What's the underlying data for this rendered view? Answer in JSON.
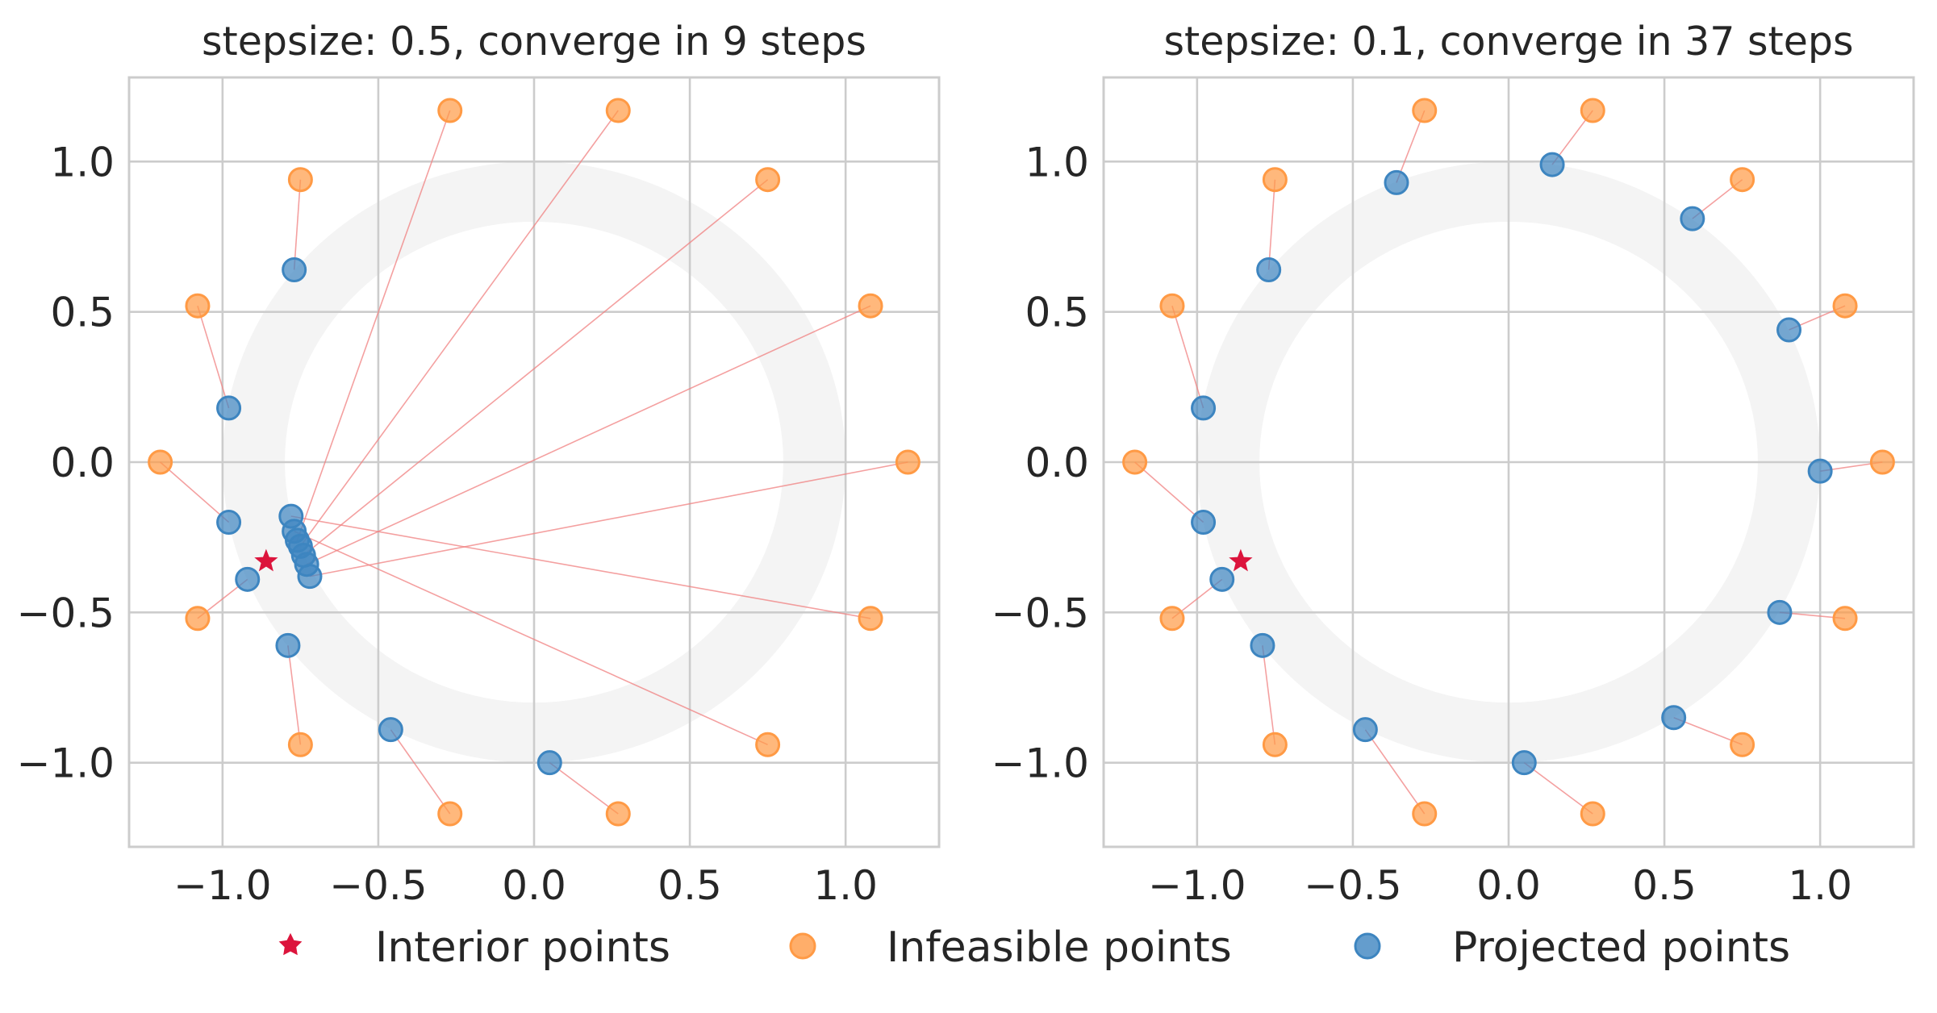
{
  "chart_data": [
    {
      "type": "scatter",
      "title": "stepsize: 0.5, converge in 9 steps",
      "xlim": [
        -1.3,
        1.3
      ],
      "ylim": [
        -1.28,
        1.28
      ],
      "xticks": [
        -1.0,
        -0.5,
        0.0,
        0.5,
        1.0
      ],
      "yticks": [
        -1.0,
        -0.5,
        0.0,
        0.5,
        1.0
      ],
      "xtick_labels": [
        "−1.0",
        "−0.5",
        "0.0",
        "0.5",
        "1.0"
      ],
      "ytick_labels": [
        "−1.0",
        "−0.5",
        "0.0",
        "0.5",
        "1.0"
      ],
      "grid": true,
      "feasible_region": {
        "shape": "annulus",
        "inner_radius": 0.8,
        "outer_radius": 1.0,
        "color": "#f4f4f4"
      },
      "interior_point": [
        -0.86,
        -0.33
      ],
      "pairs": [
        {
          "infeasible": [
            1.2,
            0.0
          ],
          "projected": [
            -0.72,
            -0.38
          ]
        },
        {
          "infeasible": [
            1.08,
            0.52
          ],
          "projected": [
            -0.73,
            -0.34
          ]
        },
        {
          "infeasible": [
            0.75,
            0.94
          ],
          "projected": [
            -0.74,
            -0.31
          ]
        },
        {
          "infeasible": [
            0.27,
            1.17
          ],
          "projected": [
            -0.75,
            -0.28
          ]
        },
        {
          "infeasible": [
            -0.27,
            1.17
          ],
          "projected": [
            -0.76,
            -0.26
          ]
        },
        {
          "infeasible": [
            -0.75,
            0.94
          ],
          "projected": [
            -0.77,
            0.64
          ]
        },
        {
          "infeasible": [
            -1.08,
            0.52
          ],
          "projected": [
            -0.98,
            0.18
          ]
        },
        {
          "infeasible": [
            -1.2,
            0.0
          ],
          "projected": [
            -0.98,
            -0.2
          ]
        },
        {
          "infeasible": [
            -1.08,
            -0.52
          ],
          "projected": [
            -0.92,
            -0.39
          ]
        },
        {
          "infeasible": [
            -0.75,
            -0.94
          ],
          "projected": [
            -0.79,
            -0.61
          ]
        },
        {
          "infeasible": [
            -0.27,
            -1.17
          ],
          "projected": [
            -0.46,
            -0.89
          ]
        },
        {
          "infeasible": [
            0.27,
            -1.17
          ],
          "projected": [
            0.05,
            -1.0
          ]
        },
        {
          "infeasible": [
            0.75,
            -0.94
          ],
          "projected": [
            -0.77,
            -0.23
          ]
        },
        {
          "infeasible": [
            1.08,
            -0.52
          ],
          "projected": [
            -0.78,
            -0.18
          ]
        }
      ]
    },
    {
      "type": "scatter",
      "title": "stepsize: 0.1, converge in 37 steps",
      "xlim": [
        -1.3,
        1.3
      ],
      "ylim": [
        -1.28,
        1.28
      ],
      "xticks": [
        -1.0,
        -0.5,
        0.0,
        0.5,
        1.0
      ],
      "yticks": [
        -1.0,
        -0.5,
        0.0,
        0.5,
        1.0
      ],
      "xtick_labels": [
        "−1.0",
        "−0.5",
        "0.0",
        "0.5",
        "1.0"
      ],
      "ytick_labels": [
        "−1.0",
        "−0.5",
        "0.0",
        "0.5",
        "1.0"
      ],
      "grid": true,
      "feasible_region": {
        "shape": "annulus",
        "inner_radius": 0.8,
        "outer_radius": 1.0,
        "color": "#f4f4f4"
      },
      "interior_point": [
        -0.86,
        -0.33
      ],
      "pairs": [
        {
          "infeasible": [
            1.2,
            0.0
          ],
          "projected": [
            1.0,
            -0.03
          ]
        },
        {
          "infeasible": [
            1.08,
            0.52
          ],
          "projected": [
            0.9,
            0.44
          ]
        },
        {
          "infeasible": [
            0.75,
            0.94
          ],
          "projected": [
            0.59,
            0.81
          ]
        },
        {
          "infeasible": [
            0.27,
            1.17
          ],
          "projected": [
            0.14,
            0.99
          ]
        },
        {
          "infeasible": [
            -0.27,
            1.17
          ],
          "projected": [
            -0.36,
            0.93
          ]
        },
        {
          "infeasible": [
            -0.75,
            0.94
          ],
          "projected": [
            -0.77,
            0.64
          ]
        },
        {
          "infeasible": [
            -1.08,
            0.52
          ],
          "projected": [
            -0.98,
            0.18
          ]
        },
        {
          "infeasible": [
            -1.2,
            0.0
          ],
          "projected": [
            -0.98,
            -0.2
          ]
        },
        {
          "infeasible": [
            -1.08,
            -0.52
          ],
          "projected": [
            -0.92,
            -0.39
          ]
        },
        {
          "infeasible": [
            -0.75,
            -0.94
          ],
          "projected": [
            -0.79,
            -0.61
          ]
        },
        {
          "infeasible": [
            -0.27,
            -1.17
          ],
          "projected": [
            -0.46,
            -0.89
          ]
        },
        {
          "infeasible": [
            0.27,
            -1.17
          ],
          "projected": [
            0.05,
            -1.0
          ]
        },
        {
          "infeasible": [
            0.75,
            -0.94
          ],
          "projected": [
            0.53,
            -0.85
          ]
        },
        {
          "infeasible": [
            1.08,
            -0.52
          ],
          "projected": [
            0.87,
            -0.5
          ]
        }
      ]
    }
  ],
  "legend": {
    "position": "bottom-center",
    "items": [
      {
        "label": "Interior points",
        "marker": "star",
        "color": "#dc143c"
      },
      {
        "label": "Infeasible points",
        "marker": "circle",
        "color": "#ffa04d"
      },
      {
        "label": "Projected points",
        "marker": "circle",
        "color": "#4a90c6"
      }
    ]
  },
  "colors": {
    "infeasible": "#ff9a45",
    "projected": "#3d85c0",
    "interior": "#dc143c",
    "connector": "#f08080",
    "grid": "#cccccc",
    "frame": "#cccccc",
    "annulus": "#f4f4f4"
  }
}
